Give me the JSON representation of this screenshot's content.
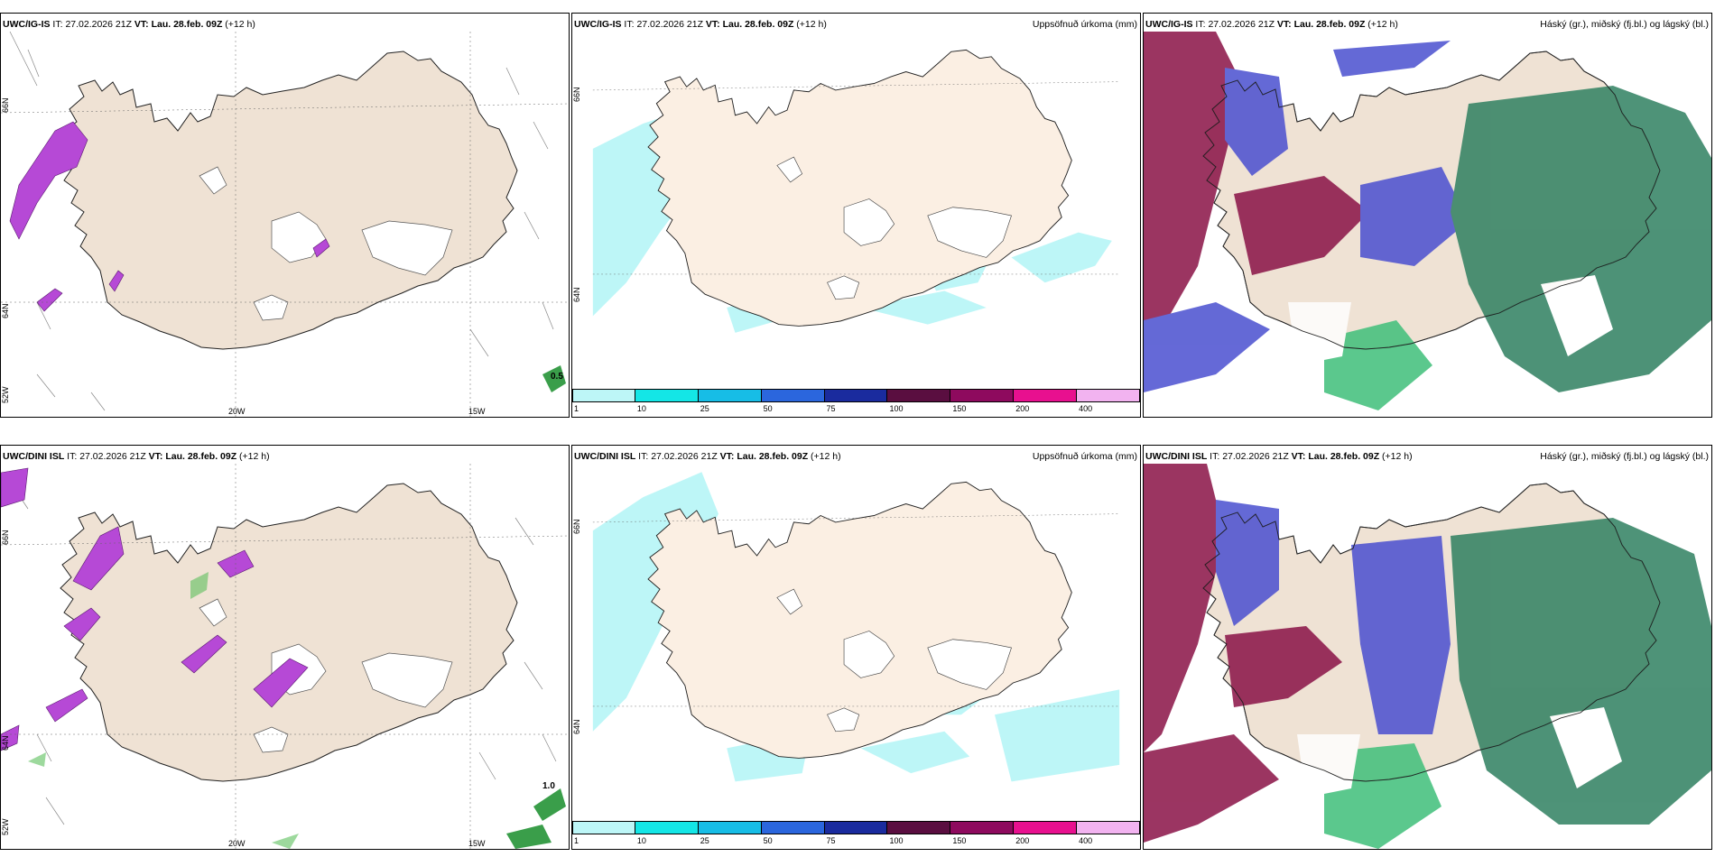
{
  "colors": {
    "land": "#efe2d4",
    "land_light": "#fbefe3",
    "sea": "#ffffff",
    "precip_cyan": "#bdf6f7",
    "purple": "#b649d6",
    "cloud_high": "#8a1246",
    "cloud_mid": "#4a4fd0",
    "cloud_low": "#2f8060"
  },
  "panels": {
    "p11": {
      "model": "UWC/IG-IS",
      "it_label": "IT:",
      "it": "27.02.2026 21Z",
      "vt_label": "VT:",
      "vt": "Lau. 28.feb. 09Z",
      "lead": "(+12 h)",
      "title": "",
      "lat1": "66N",
      "lat2": "64N",
      "lat3": "52W",
      "lon1": "20W",
      "lon2": "15W",
      "value": "0.5"
    },
    "p12": {
      "model": "UWC/IG-IS",
      "it_label": "IT:",
      "it": "27.02.2026 21Z",
      "vt_label": "VT:",
      "vt": "Lau. 28.feb. 09Z",
      "lead": "(+12 h)",
      "title": "Uppsöfnuð úrkoma (mm)",
      "lat1": "66N",
      "lat2": "64N"
    },
    "p13": {
      "model": "UWC/IG-IS",
      "it_label": "IT:",
      "it": "27.02.2026 21Z",
      "vt_label": "VT:",
      "vt": "Lau. 28.feb. 09Z",
      "lead": "(+12 h)",
      "title": "Háský (gr.), miðský (fj.bl.) og lágský (bl.)"
    },
    "p21": {
      "model": "UWC/DINI ISL",
      "it_label": "IT:",
      "it": "27.02.2026 21Z",
      "vt_label": "VT:",
      "vt": "Lau. 28.feb. 09Z",
      "lead": "(+12 h)",
      "title": "",
      "lat1": "66N",
      "lat2": "64N",
      "lat3": "52W",
      "lon1": "20W",
      "lon2": "15W",
      "value": "1.0"
    },
    "p22": {
      "model": "UWC/DINI ISL",
      "it_label": "IT:",
      "it": "27.02.2026 21Z",
      "vt_label": "VT:",
      "vt": "Lau. 28.feb. 09Z",
      "lead": "(+12 h)",
      "title": "Uppsöfnuð úrkoma (mm)",
      "lat1": "66N",
      "lat2": "64N"
    },
    "p23": {
      "model": "UWC/DINI ISL",
      "it_label": "IT:",
      "it": "27.02.2026 21Z",
      "vt_label": "VT:",
      "vt": "Lau. 28.feb. 09Z",
      "lead": "(+12 h)",
      "title": "Háský (gr.), miðský (fj.bl.) og lágský (bl.)"
    }
  },
  "colorbar": {
    "labels": [
      "1",
      "10",
      "25",
      "50",
      "75",
      "100",
      "150",
      "200",
      "400"
    ],
    "colors": [
      "#bdf6f7",
      "#14e6e6",
      "#17bde6",
      "#2b66dd",
      "#1a2b9e",
      "#5a0e40",
      "#8e0a5e",
      "#e8108f",
      "#f2b3f0"
    ]
  }
}
